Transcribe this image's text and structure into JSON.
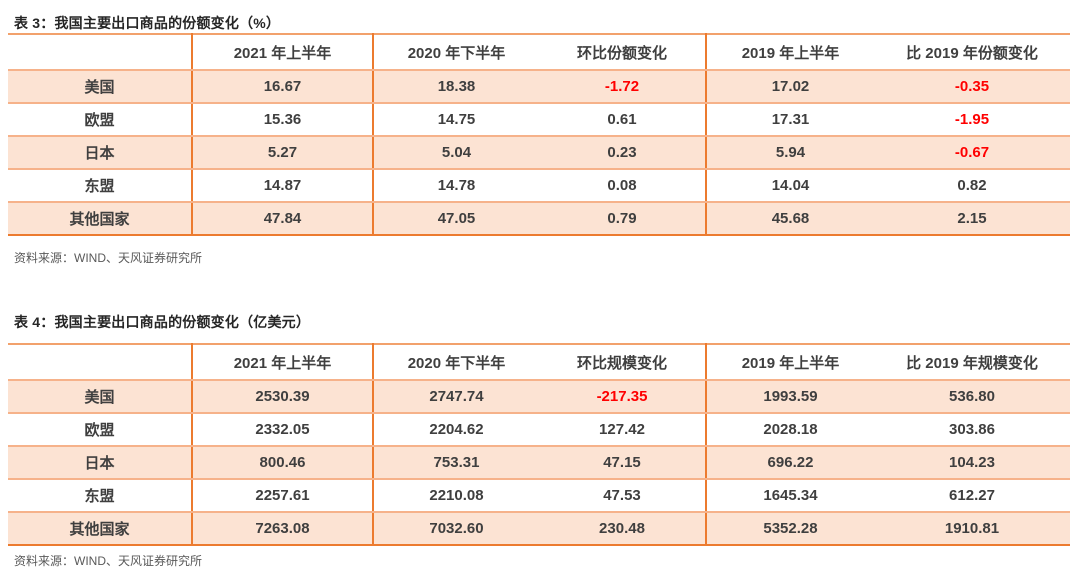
{
  "colors": {
    "border_strong": "#EC7B2F",
    "border_light": "#F6B28A",
    "row_shade": "#FCE3D3",
    "text_dark": "#3F3F3F",
    "text_negative": "#FF0000",
    "text_source": "#595959"
  },
  "tables": [
    {
      "title": "表 3：我国主要出口商品的份额变化（%）",
      "columns": [
        "",
        "2021 年上半年",
        "2020 年下半年",
        "环比份额变化",
        "2019 年上半年",
        "比 2019 年份额变化"
      ],
      "rows": [
        {
          "label": "美国",
          "values": [
            "16.67",
            "18.38",
            "-1.72",
            "17.02",
            "-0.35"
          ]
        },
        {
          "label": "欧盟",
          "values": [
            "15.36",
            "14.75",
            "0.61",
            "17.31",
            "-1.95"
          ]
        },
        {
          "label": "日本",
          "values": [
            "5.27",
            "5.04",
            "0.23",
            "5.94",
            "-0.67"
          ]
        },
        {
          "label": "东盟",
          "values": [
            "14.87",
            "14.78",
            "0.08",
            "14.04",
            "0.82"
          ]
        },
        {
          "label": "其他国家",
          "values": [
            "47.84",
            "47.05",
            "0.79",
            "45.68",
            "2.15"
          ]
        }
      ],
      "source": "资料来源：WIND、天风证券研究所"
    },
    {
      "title": "表 4：我国主要出口商品的份额变化（亿美元）",
      "columns": [
        "",
        "2021 年上半年",
        "2020 年下半年",
        "环比规模变化",
        "2019 年上半年",
        "比 2019 年规模变化"
      ],
      "rows": [
        {
          "label": "美国",
          "values": [
            "2530.39",
            "2747.74",
            "-217.35",
            "1993.59",
            "536.80"
          ]
        },
        {
          "label": "欧盟",
          "values": [
            "2332.05",
            "2204.62",
            "127.42",
            "2028.18",
            "303.86"
          ]
        },
        {
          "label": "日本",
          "values": [
            "800.46",
            "753.31",
            "47.15",
            "696.22",
            "104.23"
          ]
        },
        {
          "label": "东盟",
          "values": [
            "2257.61",
            "2210.08",
            "47.53",
            "1645.34",
            "612.27"
          ]
        },
        {
          "label": "其他国家",
          "values": [
            "7263.08",
            "7032.60",
            "230.48",
            "5352.28",
            "1910.81"
          ]
        }
      ],
      "source": "资料来源：WIND、天风证券研究所"
    }
  ]
}
